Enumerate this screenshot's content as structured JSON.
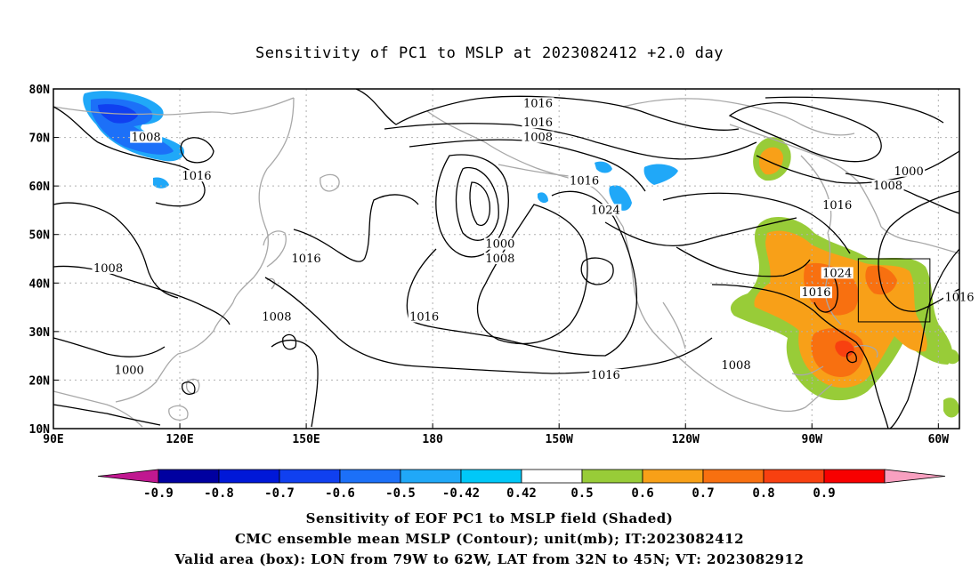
{
  "title": "Sensitivity of PC1 to MSLP at 2023082412 +2.0 day",
  "map": {
    "lat_ticks": [
      "80N",
      "70N",
      "60N",
      "50N",
      "40N",
      "30N",
      "20N",
      "10N"
    ],
    "lon_ticks": [
      "90E",
      "120E",
      "150E",
      "180",
      "150W",
      "120W",
      "90W",
      "60W"
    ],
    "contour_labels": [
      {
        "text": "1016",
        "lon": -155,
        "lat": 77
      },
      {
        "text": "1016",
        "lon": -155,
        "lat": 73
      },
      {
        "text": "1008",
        "lon": -155,
        "lat": 70
      },
      {
        "text": "1008",
        "lon": 112,
        "lat": 70
      },
      {
        "text": "1016",
        "lon": 124,
        "lat": 62
      },
      {
        "text": "1016",
        "lon": -144,
        "lat": 61
      },
      {
        "text": "1024",
        "lon": -139,
        "lat": 55
      },
      {
        "text": "1000",
        "lon": -164,
        "lat": 48
      },
      {
        "text": "1008",
        "lon": -164,
        "lat": 45
      },
      {
        "text": "1016",
        "lon": 150,
        "lat": 45
      },
      {
        "text": "1008",
        "lon": 103,
        "lat": 43
      },
      {
        "text": "1008",
        "lon": 143,
        "lat": 33
      },
      {
        "text": "1016",
        "lon": 178,
        "lat": 33
      },
      {
        "text": "1000",
        "lon": 108,
        "lat": 22
      },
      {
        "text": "1016",
        "lon": -139,
        "lat": 21
      },
      {
        "text": "1008",
        "lon": -108,
        "lat": 23
      },
      {
        "text": "1000",
        "lon": -67,
        "lat": 63
      },
      {
        "text": "1008",
        "lon": -72,
        "lat": 60
      },
      {
        "text": "1016",
        "lon": -84,
        "lat": 56
      },
      {
        "text": "1024",
        "lon": -84,
        "lat": 42
      },
      {
        "text": "1016",
        "lon": -89,
        "lat": 38
      },
      {
        "text": "1016",
        "lon": -55,
        "lat": 37
      }
    ],
    "box": {
      "lon_min": -79,
      "lon_max": -62,
      "lat_min": 32,
      "lat_max": 45
    }
  },
  "colorbar": {
    "labels": [
      "-0.9",
      "-0.8",
      "-0.7",
      "-0.6",
      "-0.5",
      "-0.42",
      "0.42",
      "0.5",
      "0.6",
      "0.7",
      "0.8",
      "0.9"
    ],
    "colors": {
      "neg_extend": "#c01890",
      "bins": [
        "#0000a0",
        "#0018d8",
        "#1040f0",
        "#1c70f8",
        "#20a8f8",
        "#00c8f8",
        "#ffffff",
        "#98cc38",
        "#f8a018",
        "#f87010",
        "#f84010",
        "#f80000"
      ],
      "pos_extend": "#f8a0c0"
    }
  },
  "captions": {
    "line1": "Sensitivity of EOF PC1 to MSLP field (Shaded)",
    "line2": "CMC ensemble mean MSLP (Contour); unit(mb); IT:2023082412",
    "line3": "Valid area (box): LON from 79W to 62W, LAT from 32N to 45N; VT: 2023082912"
  }
}
